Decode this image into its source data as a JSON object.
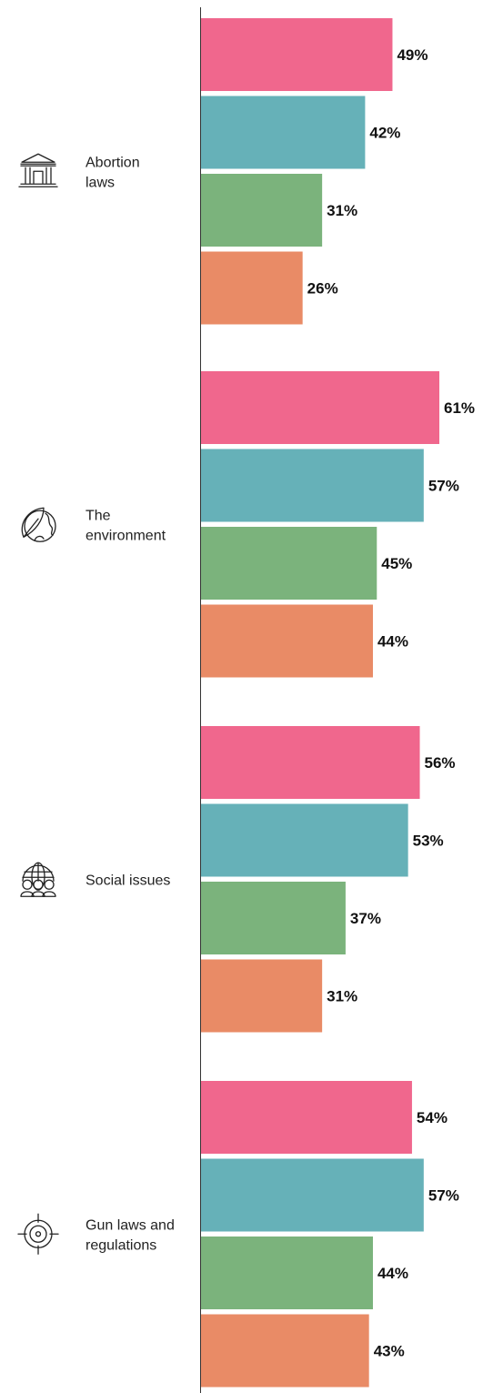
{
  "chart_data": {
    "type": "bar",
    "orientation": "horizontal",
    "grid": false,
    "xlim": [
      0,
      66
    ],
    "groups": [
      {
        "label": "Abortion\nlaws",
        "icon": "courthouse-icon",
        "values": [
          49,
          42,
          31,
          26
        ],
        "labels": [
          "49%",
          "42%",
          "31%",
          "26%"
        ]
      },
      {
        "label": "The\nenvironment",
        "icon": "leaf-globe-icon",
        "values": [
          61,
          57,
          45,
          44
        ],
        "labels": [
          "61%",
          "57%",
          "45%",
          "44%"
        ]
      },
      {
        "label": "Social issues",
        "icon": "globe-people-icon",
        "values": [
          56,
          53,
          37,
          31
        ],
        "labels": [
          "56%",
          "53%",
          "37%",
          "31%"
        ]
      },
      {
        "label": "Gun laws and\nregulations",
        "icon": "target-icon",
        "values": [
          54,
          57,
          44,
          43
        ],
        "labels": [
          "54%",
          "57%",
          "44%",
          "43%"
        ]
      }
    ],
    "series_colors": [
      "#F0678D",
      "#66B1B8",
      "#7BB37C",
      "#E98B66"
    ]
  }
}
